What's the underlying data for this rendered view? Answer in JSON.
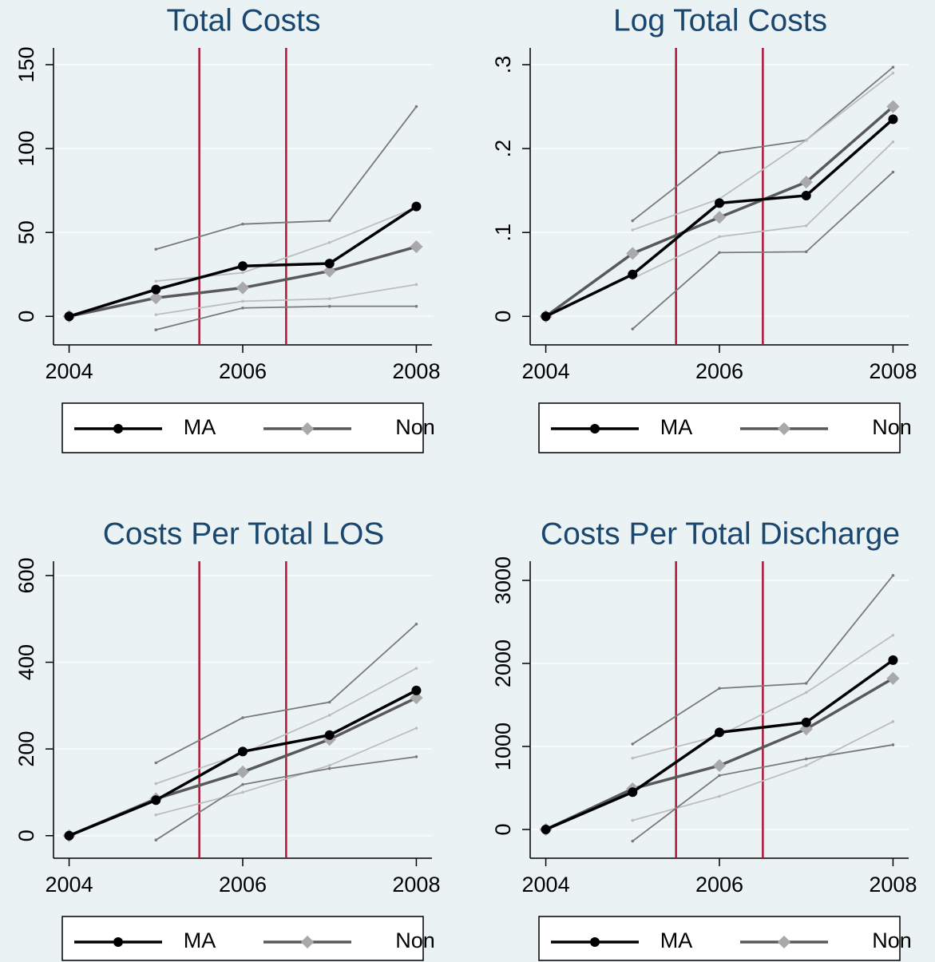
{
  "chart_data": [
    {
      "type": "line",
      "title": "Total Costs",
      "x": [
        2004,
        2005,
        2006,
        2007,
        2008
      ],
      "xlim": [
        2003.82,
        2008.18
      ],
      "xticks": [
        2004,
        2006,
        2008
      ],
      "ylim": [
        -17,
        160
      ],
      "yticks": [
        0,
        50,
        100,
        150
      ],
      "grid": true,
      "vlines": [
        2005.5,
        2006.5
      ],
      "vline_color": "#b0163a",
      "series": [
        {
          "color": "#7a7a7a",
          "values": [
            null,
            40,
            55,
            57,
            125
          ]
        },
        {
          "color": "#bdbdbd",
          "values": [
            null,
            21,
            26,
            44,
            65
          ]
        },
        {
          "color": "#bdbdbd",
          "values": [
            null,
            1,
            9,
            10.5,
            19
          ]
        },
        {
          "color": "#7a7a7a",
          "values": [
            null,
            -8,
            5,
            6,
            6
          ]
        },
        {
          "name": "Non",
          "color": "#595959",
          "marker": "diamond",
          "marker_color": "#a9a9a9",
          "values": [
            0,
            11,
            17,
            27,
            41.5
          ]
        },
        {
          "name": "MA",
          "color": "#000000",
          "marker": "circle",
          "marker_color": "#000000",
          "values": [
            0,
            16,
            30,
            31.5,
            65.5
          ]
        }
      ]
    },
    {
      "type": "line",
      "title": "Log Total Costs",
      "x": [
        2004,
        2005,
        2006,
        2007,
        2008
      ],
      "xlim": [
        2003.82,
        2008.18
      ],
      "xticks": [
        2004,
        2006,
        2008
      ],
      "ylim": [
        -0.034,
        0.32
      ],
      "yticks": [
        0,
        {
          "value": 0.1,
          "label": ".1"
        },
        {
          "value": 0.2,
          "label": ".2"
        },
        {
          "value": 0.3,
          "label": ".3"
        }
      ],
      "grid": true,
      "vlines": [
        2005.5,
        2006.5
      ],
      "vline_color": "#b0163a",
      "series": [
        {
          "color": "#7a7a7a",
          "values": [
            null,
            0.114,
            0.195,
            0.21,
            0.297
          ]
        },
        {
          "color": "#bdbdbd",
          "values": [
            null,
            0.103,
            0.14,
            0.21,
            0.29
          ]
        },
        {
          "color": "#bdbdbd",
          "values": [
            null,
            0.045,
            0.095,
            0.108,
            0.208
          ]
        },
        {
          "color": "#7a7a7a",
          "values": [
            null,
            -0.015,
            0.076,
            0.077,
            0.172
          ]
        },
        {
          "name": "Non",
          "color": "#595959",
          "marker": "diamond",
          "marker_color": "#a9a9a9",
          "values": [
            0,
            0.075,
            0.118,
            0.16,
            0.25
          ]
        },
        {
          "name": "MA",
          "color": "#000000",
          "marker": "circle",
          "marker_color": "#000000",
          "values": [
            0,
            0.05,
            0.135,
            0.144,
            0.235
          ]
        }
      ]
    },
    {
      "type": "line",
      "title": "Costs Per Total LOS",
      "x": [
        2004,
        2005,
        2006,
        2007,
        2008
      ],
      "xlim": [
        2003.82,
        2008.18
      ],
      "xticks": [
        2004,
        2006,
        2008
      ],
      "ylim": [
        -52,
        633
      ],
      "yticks": [
        0,
        200,
        400,
        600
      ],
      "grid": true,
      "vlines": [
        2005.5,
        2006.5
      ],
      "vline_color": "#b0163a",
      "series": [
        {
          "color": "#7a7a7a",
          "values": [
            null,
            168,
            272,
            308,
            488
          ]
        },
        {
          "color": "#bdbdbd",
          "values": [
            null,
            120,
            190,
            278,
            386
          ]
        },
        {
          "color": "#bdbdbd",
          "values": [
            null,
            48,
            100,
            162,
            248
          ]
        },
        {
          "color": "#7a7a7a",
          "values": [
            null,
            -10,
            118,
            155,
            182
          ]
        },
        {
          "name": "Non",
          "color": "#595959",
          "marker": "diamond",
          "marker_color": "#a9a9a9",
          "values": [
            0,
            85,
            147,
            222,
            318
          ]
        },
        {
          "name": "MA",
          "color": "#000000",
          "marker": "circle",
          "marker_color": "#000000",
          "values": [
            0,
            82,
            194,
            232,
            335
          ]
        }
      ]
    },
    {
      "type": "line",
      "title": "Costs Per Total Discharge",
      "x": [
        2004,
        2005,
        2006,
        2007,
        2008
      ],
      "xlim": [
        2003.82,
        2008.18
      ],
      "xticks": [
        2004,
        2006,
        2008
      ],
      "ylim": [
        -346,
        3231
      ],
      "yticks": [
        0,
        1000,
        2000,
        3000
      ],
      "grid": true,
      "vlines": [
        2005.5,
        2006.5
      ],
      "vline_color": "#b0163a",
      "series": [
        {
          "color": "#7a7a7a",
          "values": [
            null,
            1030,
            1700,
            1760,
            3060
          ]
        },
        {
          "color": "#bdbdbd",
          "values": [
            null,
            860,
            1130,
            1650,
            2340
          ]
        },
        {
          "color": "#bdbdbd",
          "values": [
            null,
            110,
            400,
            770,
            1300
          ]
        },
        {
          "color": "#7a7a7a",
          "values": [
            null,
            -140,
            650,
            850,
            1020
          ]
        },
        {
          "name": "Non",
          "color": "#595959",
          "marker": "diamond",
          "marker_color": "#a9a9a9",
          "values": [
            0,
            490,
            770,
            1210,
            1820
          ]
        },
        {
          "name": "MA",
          "color": "#000000",
          "marker": "circle",
          "marker_color": "#000000",
          "values": [
            0,
            450,
            1170,
            1290,
            2040
          ]
        }
      ]
    }
  ]
}
